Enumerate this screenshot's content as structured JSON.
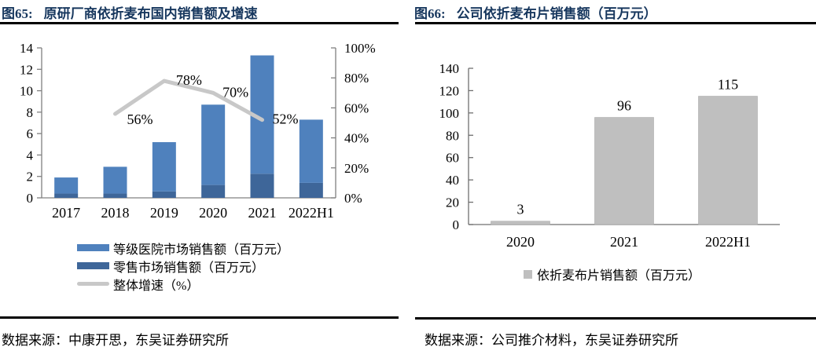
{
  "colors": {
    "title_navy": "#17375e",
    "rule_black": "#000000",
    "axis_gray_left_chart": "#808080",
    "axis_gray_right_chart": "#6f6f6f",
    "bar_light_blue": "#4f81bd",
    "bar_dark_blue": "#3e6699",
    "line_gray": "#c8c8c8",
    "bar_gray": "#bfbfbf",
    "text_black": "#000000"
  },
  "figures": [
    {
      "title_label": "图65:",
      "title": "原研厂商依折麦布国内销售额及增速",
      "source": "数据来源：中康开思，东吴证券研究所"
    },
    {
      "title_label": "图66:",
      "title": "公司依折麦布片销售额（百万元）",
      "source": "数据来源：公司推介材料，东吴证券研究所"
    }
  ],
  "chart_data": [
    {
      "type": "bar",
      "subtype": "stacked-bar-with-line",
      "title": "原研厂商依折麦布国内销售额及增速",
      "categories": [
        "2017",
        "2018",
        "2019",
        "2020",
        "2021",
        "2022H1"
      ],
      "series": [
        {
          "name": "等级医院市场销售额（百万元）",
          "type": "bar",
          "stack_index": 1,
          "color": "#4f81bd",
          "values": [
            1.5,
            2.5,
            4.6,
            7.5,
            11.05,
            5.9
          ]
        },
        {
          "name": "零售市场销售额（百万元）",
          "type": "bar",
          "stack_index": 0,
          "color": "#3e6699",
          "values": [
            0.4,
            0.4,
            0.6,
            1.2,
            2.25,
            1.4
          ]
        },
        {
          "name": "整体增速（%）",
          "type": "line",
          "axis": "right",
          "color": "#c8c8c8",
          "values": [
            null,
            56,
            78,
            70,
            52,
            null
          ],
          "point_labels": [
            null,
            "56%",
            "78%",
            "70%",
            "52%",
            null
          ]
        }
      ],
      "left_axis": {
        "min": 0,
        "max": 14,
        "step": 2,
        "ticks": [
          "0",
          "2",
          "4",
          "6",
          "8",
          "10",
          "12",
          "14"
        ]
      },
      "right_axis": {
        "min": 0,
        "max": 100,
        "step": 20,
        "ticks": [
          "0%",
          "20%",
          "40%",
          "60%",
          "80%",
          "100%"
        ]
      },
      "grid": false,
      "legend_position": "bottom-left"
    },
    {
      "type": "bar",
      "title": "公司依折麦布片销售额（百万元）",
      "categories": [
        "2020",
        "2021",
        "2022H1"
      ],
      "series": [
        {
          "name": "依折麦布片销售额（百万元）",
          "type": "bar",
          "color": "#bfbfbf",
          "values": [
            3,
            96,
            115
          ],
          "data_labels": [
            "3",
            "96",
            "115"
          ]
        }
      ],
      "y_axis": {
        "min": 0,
        "max": 140,
        "step": 20,
        "ticks": [
          "0",
          "20",
          "40",
          "60",
          "80",
          "100",
          "120",
          "140"
        ]
      },
      "grid": false,
      "legend_position": "bottom-center"
    }
  ]
}
